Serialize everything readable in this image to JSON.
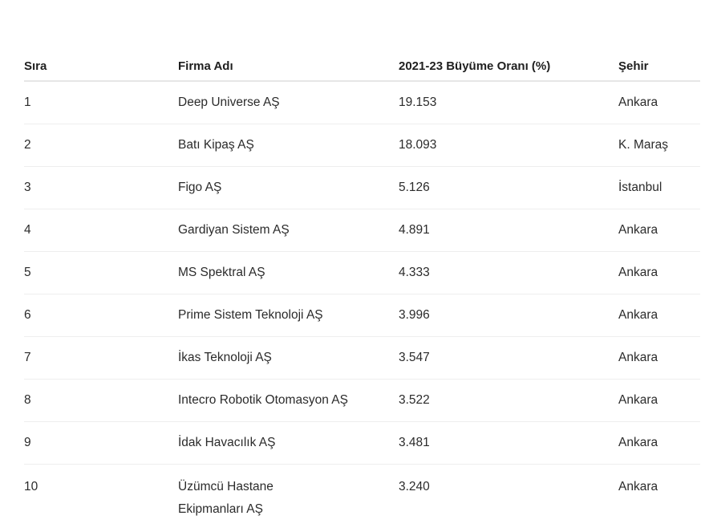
{
  "table": {
    "headers": [
      "Sıra",
      "Firma Adı",
      "2021-23 Büyüme Oranı (%)",
      "Şehir"
    ],
    "rows": [
      [
        "1",
        "Deep Universe AŞ",
        "19.153",
        "Ankara"
      ],
      [
        "2",
        "Batı Kipaş AŞ",
        "18.093",
        "K. Maraş"
      ],
      [
        "3",
        "Figo AŞ",
        "5.126",
        "İstanbul"
      ],
      [
        "4",
        "Gardiyan Sistem AŞ",
        "4.891",
        "Ankara"
      ],
      [
        "5",
        "MS Spektral AŞ",
        "4.333",
        "Ankara"
      ],
      [
        "6",
        "Prime Sistem Teknoloji AŞ",
        "3.996",
        "Ankara"
      ],
      [
        "7",
        "İkas Teknoloji AŞ",
        "3.547",
        "Ankara"
      ],
      [
        "8",
        "Intecro Robotik Otomasyon AŞ",
        "3.522",
        "Ankara"
      ],
      [
        "9",
        "İdak Havacılık AŞ",
        "3.481",
        "Ankara"
      ],
      [
        "10",
        "Üzümcü Hastane Ekipmanları AŞ",
        "3.240",
        "Ankara"
      ]
    ]
  }
}
